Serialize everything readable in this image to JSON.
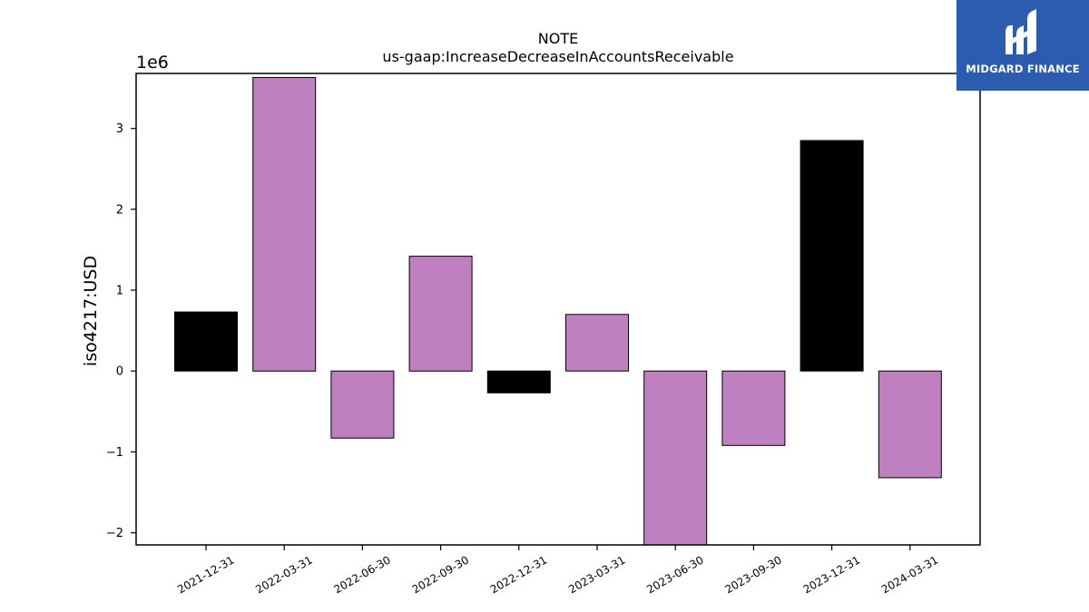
{
  "brand": {
    "name": "MIDGARD FINANCE",
    "bg_color": "#2b5cb0"
  },
  "chart_data": {
    "type": "bar",
    "title": "NOTE",
    "subtitle": "us-gaap:IncreaseDecreaseInAccountsReceivable",
    "xlabel": "",
    "ylabel": "iso4217:USD",
    "scale_label": "1e6",
    "ylim": [
      -2.15,
      3.68
    ],
    "yticks": [
      -2,
      -1,
      0,
      1,
      2,
      3
    ],
    "ytick_labels": [
      "−2",
      "−1",
      "0",
      "1",
      "2",
      "3"
    ],
    "grid": false,
    "categories": [
      "2021-12-31",
      "2022-03-31",
      "2022-06-30",
      "2022-09-30",
      "2022-12-31",
      "2023-03-31",
      "2023-06-30",
      "2023-09-30",
      "2023-12-31",
      "2024-03-31"
    ],
    "values": [
      0.73,
      3.63,
      -0.83,
      1.42,
      -0.27,
      0.7,
      -2.15,
      -0.92,
      2.85,
      -1.32
    ],
    "colors": [
      "#000000",
      "#bf80bf",
      "#bf80bf",
      "#bf80bf",
      "#000000",
      "#bf80bf",
      "#bf80bf",
      "#bf80bf",
      "#000000",
      "#bf80bf"
    ]
  }
}
